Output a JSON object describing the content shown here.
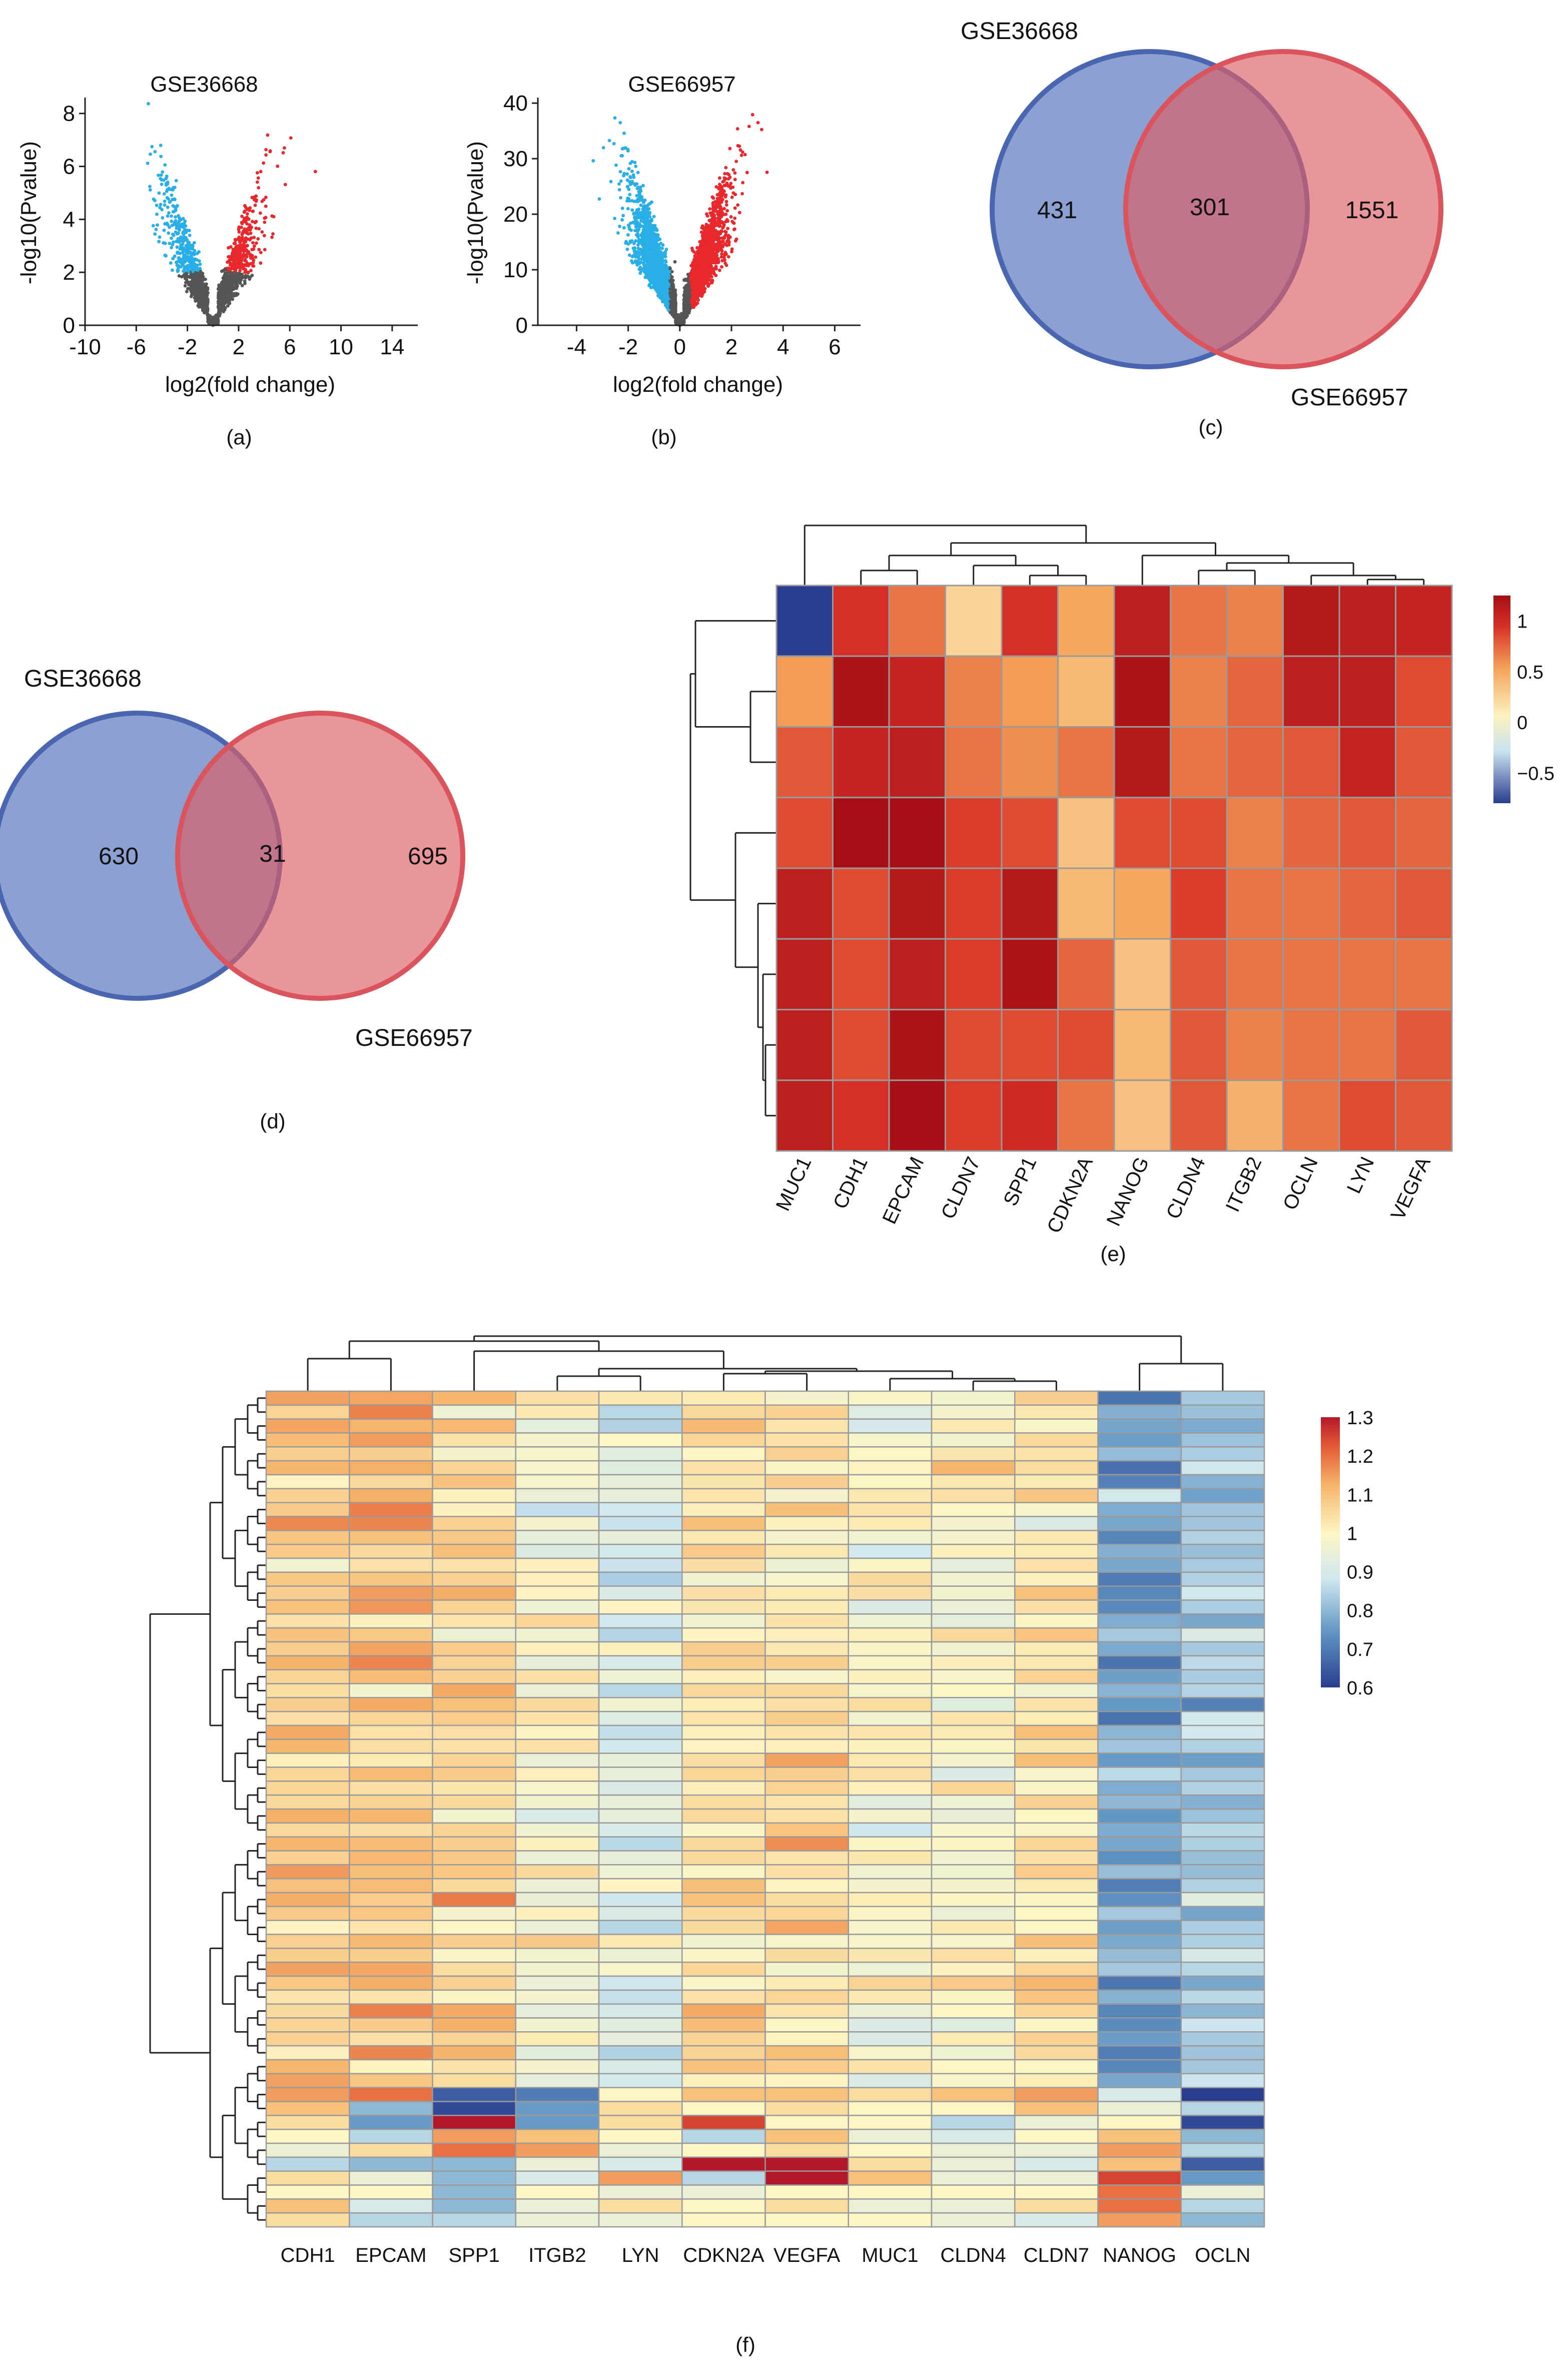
{
  "panel_labels": [
    "(a)",
    "(b)",
    "(c)",
    "(d)",
    "(e)",
    "(f)"
  ],
  "chart_data": [
    {
      "id": "a",
      "type": "scatter",
      "title": "GSE36668",
      "xlabel": "log2(fold change)",
      "ylabel": "-log10(Pvalue)",
      "xlim": [
        -10,
        16
      ],
      "ylim": [
        0,
        8.6
      ],
      "xticks": [
        -10,
        -6,
        -2,
        2,
        6,
        10,
        14
      ],
      "yticks": [
        0,
        2,
        4,
        6,
        8
      ],
      "xtick_labels": [
        "-10",
        "-6",
        "-2",
        "2",
        "6",
        "10",
        "14"
      ],
      "ytick_labels": [
        "0",
        "2",
        "4",
        "6",
        "8"
      ],
      "threshold_logfc": 1,
      "threshold_y": 2,
      "point_count": 1800,
      "seed": 11,
      "series": [
        {
          "name": "Down",
          "color": "#29aee6"
        },
        {
          "name": "Up",
          "color": "#e8282c"
        },
        {
          "name": "Not significant",
          "color": "#555555"
        }
      ]
    },
    {
      "id": "b",
      "type": "scatter",
      "title": "GSE66957",
      "xlabel": "log2(fold change)",
      "ylabel": "-log10(Pvalue)",
      "xlim": [
        -5.5,
        7
      ],
      "ylim": [
        0,
        41
      ],
      "xticks": [
        -4,
        -2,
        0,
        2,
        4,
        6
      ],
      "yticks": [
        0,
        10,
        20,
        30,
        40
      ],
      "xtick_labels": [
        "-4",
        "-2",
        "0",
        "2",
        "4",
        "6"
      ],
      "ytick_labels": [
        "0",
        "10",
        "20",
        "30",
        "40"
      ],
      "threshold_logfc": 0.4,
      "threshold_y": 1.3,
      "point_count": 5200,
      "seed": 29,
      "series": [
        {
          "name": "Down",
          "color": "#29aee6"
        },
        {
          "name": "Up",
          "color": "#e8282c"
        },
        {
          "name": "Not significant",
          "color": "#555555"
        }
      ]
    },
    {
      "id": "c",
      "type": "venn",
      "sets": [
        {
          "label": "GSE36668",
          "only": "431",
          "color": "#4f6fb8"
        },
        {
          "label": "GSE66957",
          "only": "1551",
          "color": "#dd5e66"
        }
      ],
      "intersection": "301"
    },
    {
      "id": "d",
      "type": "venn",
      "sets": [
        {
          "label": "GSE36668",
          "only": "630",
          "color": "#4f6fb8"
        },
        {
          "label": "GSE66957",
          "only": "695",
          "color": "#dd5e66"
        }
      ],
      "intersection": "31"
    },
    {
      "id": "e",
      "type": "heatmap",
      "columns": [
        "MUC1",
        "CDH1",
        "EPCAM",
        "CLDN7",
        "SPP1",
        "CDKN2A",
        "NANOG",
        "CLDN4",
        "ITGB2",
        "OCLN",
        "LYN",
        "VEGFA"
      ],
      "values": [
        [
          -0.9,
          0.95,
          0.7,
          0.25,
          0.95,
          0.5,
          1.1,
          0.7,
          0.65,
          1.15,
          1.1,
          1.05
        ],
        [
          0.55,
          1.2,
          1.05,
          0.65,
          0.55,
          0.4,
          1.2,
          0.65,
          0.75,
          1.1,
          1.1,
          0.85
        ],
        [
          0.8,
          1.05,
          1.1,
          0.7,
          0.6,
          0.7,
          1.15,
          0.7,
          0.75,
          0.8,
          1.05,
          0.8
        ],
        [
          0.85,
          1.25,
          1.25,
          0.9,
          0.85,
          0.35,
          0.85,
          0.85,
          0.65,
          0.75,
          0.8,
          0.75
        ],
        [
          1.1,
          0.85,
          1.15,
          0.9,
          1.15,
          0.4,
          0.5,
          0.9,
          0.7,
          0.7,
          0.75,
          0.8
        ],
        [
          1.1,
          0.85,
          1.1,
          0.9,
          1.2,
          0.75,
          0.35,
          0.8,
          0.7,
          0.7,
          0.7,
          0.7
        ],
        [
          1.1,
          0.85,
          1.2,
          0.85,
          0.85,
          0.85,
          0.4,
          0.8,
          0.65,
          0.7,
          0.7,
          0.8
        ],
        [
          1.1,
          0.95,
          1.25,
          0.9,
          1.0,
          0.7,
          0.35,
          0.8,
          0.45,
          0.7,
          0.85,
          0.8
        ]
      ],
      "scale_min": -0.8,
      "scale_max": 1.25,
      "legend_ticks": [
        1,
        0.5,
        0,
        -0.5
      ],
      "legend_tick_labels": [
        "1",
        "0.5",
        "0",
        "−0.5"
      ]
    },
    {
      "id": "f",
      "type": "heatmap",
      "columns": [
        "CDH1",
        "EPCAM",
        "SPP1",
        "ITGB2",
        "LYN",
        "CDKN2A",
        "VEGFA",
        "MUC1",
        "CLDN4",
        "CLDN7",
        "NANOG",
        "OCLN"
      ],
      "row_count": 60,
      "seed": 7,
      "column_means": [
        1.08,
        1.1,
        1.05,
        0.98,
        0.92,
        1.03,
        1.03,
        0.98,
        1.0,
        1.04,
        0.75,
        0.83
      ],
      "bottom_rows": [
        [
          1.15,
          1.2,
          0.65,
          0.7,
          1.0,
          1.1,
          1.1,
          1.05,
          1.1,
          1.15,
          0.9,
          0.6
        ],
        [
          1.1,
          0.8,
          0.62,
          0.75,
          1.05,
          1.0,
          1.05,
          1.0,
          1.0,
          1.1,
          0.95,
          0.85
        ],
        [
          1.05,
          0.75,
          1.3,
          0.75,
          1.05,
          1.25,
          1.0,
          1.0,
          0.85,
          0.95,
          1.0,
          0.62
        ],
        [
          1.0,
          0.85,
          1.15,
          1.1,
          1.0,
          0.85,
          1.1,
          0.95,
          0.9,
          1.0,
          1.1,
          0.8
        ],
        [
          0.95,
          1.05,
          1.2,
          1.15,
          0.95,
          1.0,
          1.05,
          1.0,
          0.95,
          0.95,
          1.15,
          0.85
        ],
        [
          0.85,
          0.8,
          0.8,
          0.95,
          0.9,
          1.3,
          1.3,
          1.05,
          0.95,
          0.9,
          1.1,
          0.65
        ],
        [
          1.05,
          0.95,
          0.8,
          0.9,
          1.15,
          0.85,
          1.3,
          1.1,
          0.95,
          0.95,
          1.25,
          0.75
        ],
        [
          1.0,
          1.0,
          0.8,
          1.0,
          0.95,
          0.95,
          1.0,
          1.0,
          1.0,
          1.0,
          1.2,
          0.95
        ],
        [
          1.1,
          0.9,
          0.8,
          0.95,
          1.05,
          1.0,
          1.05,
          0.95,
          0.95,
          1.05,
          1.2,
          0.85
        ],
        [
          1.05,
          0.85,
          0.85,
          0.95,
          0.95,
          1.0,
          1.0,
          1.0,
          0.95,
          0.9,
          1.15,
          0.8
        ]
      ],
      "scale_min": 0.6,
      "scale_max": 1.3,
      "legend_ticks": [
        1.3,
        1.2,
        1.1,
        1,
        0.9,
        0.8,
        0.7,
        0.6
      ],
      "legend_tick_labels": [
        "1.3",
        "1.2",
        "1.1",
        "1",
        "0.9",
        "0.8",
        "0.7",
        "0.6"
      ]
    }
  ]
}
